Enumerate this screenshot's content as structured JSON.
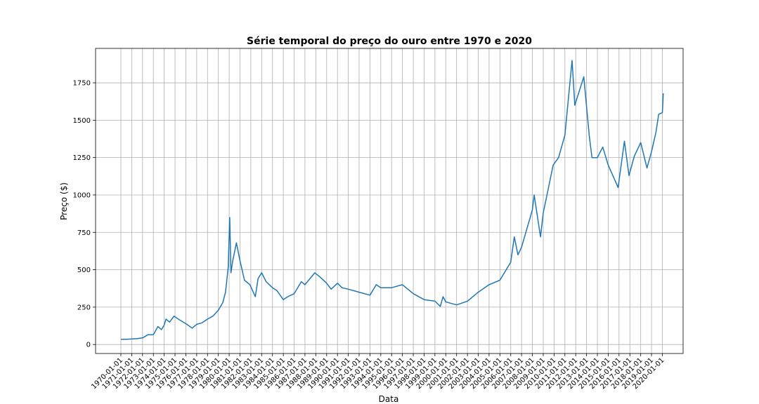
{
  "chart_data": {
    "type": "line",
    "title": "Série temporal do preço do ouro entre 1970 e 2020",
    "xlabel": "Data",
    "ylabel": "Preço ($)",
    "x_ticks": [
      "1970-01-01",
      "1971-01-01",
      "1972-01-01",
      "1973-01-01",
      "1974-01-01",
      "1975-01-01",
      "1976-01-01",
      "1977-01-01",
      "1978-01-01",
      "1979-01-01",
      "1980-01-01",
      "1981-01-01",
      "1982-01-01",
      "1983-01-01",
      "1984-01-01",
      "1985-01-01",
      "1986-01-01",
      "1987-01-01",
      "1988-01-01",
      "1989-01-01",
      "1990-01-01",
      "1991-01-01",
      "1992-01-01",
      "1993-01-01",
      "1994-01-01",
      "1995-01-01",
      "1996-01-01",
      "1997-01-01",
      "1998-01-01",
      "1999-01-01",
      "2000-01-01",
      "2001-01-01",
      "2002-01-01",
      "2003-01-01",
      "2004-01-01",
      "2005-01-01",
      "2006-01-01",
      "2007-01-01",
      "2008-01-01",
      "2009-01-01",
      "2010-01-01",
      "2011-01-01",
      "2012-01-01",
      "2013-01-01",
      "2014-01-01",
      "2015-01-01",
      "2016-01-01",
      "2017-01-01",
      "2018-01-01",
      "2019-01-01",
      "2020-01-01"
    ],
    "y_ticks": [
      0,
      250,
      500,
      750,
      1000,
      1250,
      1500,
      1750
    ],
    "xlim": [
      "1967-09-01",
      "2021-12-01"
    ],
    "ylim": [
      -60,
      1980
    ],
    "grid": true,
    "series": [
      {
        "color": "#1f77b4",
        "points": [
          [
            "1970-01-01",
            35
          ],
          [
            "1970-07-01",
            35
          ],
          [
            "1971-01-01",
            37
          ],
          [
            "1971-07-01",
            40
          ],
          [
            "1972-01-01",
            44
          ],
          [
            "1972-07-01",
            65
          ],
          [
            "1973-01-01",
            65
          ],
          [
            "1973-06-01",
            120
          ],
          [
            "1973-10-01",
            100
          ],
          [
            "1974-01-01",
            130
          ],
          [
            "1974-03-01",
            170
          ],
          [
            "1974-07-01",
            150
          ],
          [
            "1974-12-01",
            190
          ],
          [
            "1975-06-01",
            165
          ],
          [
            "1976-01-01",
            140
          ],
          [
            "1976-08-01",
            110
          ],
          [
            "1977-01-01",
            135
          ],
          [
            "1977-07-01",
            145
          ],
          [
            "1978-01-01",
            170
          ],
          [
            "1978-07-01",
            190
          ],
          [
            "1979-01-01",
            230
          ],
          [
            "1979-06-01",
            280
          ],
          [
            "1979-09-01",
            350
          ],
          [
            "1979-12-01",
            520
          ],
          [
            "1980-01-21",
            850
          ],
          [
            "1980-03-01",
            480
          ],
          [
            "1980-05-01",
            560
          ],
          [
            "1980-09-01",
            680
          ],
          [
            "1981-01-01",
            560
          ],
          [
            "1981-06-01",
            430
          ],
          [
            "1981-12-01",
            400
          ],
          [
            "1982-06-01",
            320
          ],
          [
            "1982-09-01",
            440
          ],
          [
            "1983-01-01",
            480
          ],
          [
            "1983-06-01",
            420
          ],
          [
            "1984-01-01",
            380
          ],
          [
            "1984-06-01",
            360
          ],
          [
            "1985-01-01",
            300
          ],
          [
            "1985-06-01",
            320
          ],
          [
            "1986-01-01",
            340
          ],
          [
            "1986-09-01",
            420
          ],
          [
            "1987-01-01",
            400
          ],
          [
            "1987-12-01",
            480
          ],
          [
            "1988-06-01",
            450
          ],
          [
            "1989-01-01",
            410
          ],
          [
            "1989-06-01",
            370
          ],
          [
            "1990-01-01",
            410
          ],
          [
            "1990-06-01",
            380
          ],
          [
            "1991-01-01",
            370
          ],
          [
            "1992-01-01",
            350
          ],
          [
            "1993-01-01",
            330
          ],
          [
            "1993-08-01",
            400
          ],
          [
            "1994-01-01",
            380
          ],
          [
            "1995-01-01",
            380
          ],
          [
            "1996-01-01",
            400
          ],
          [
            "1997-01-01",
            340
          ],
          [
            "1998-01-01",
            300
          ],
          [
            "1999-01-01",
            290
          ],
          [
            "1999-07-01",
            255
          ],
          [
            "1999-10-01",
            320
          ],
          [
            "2000-01-01",
            285
          ],
          [
            "2001-01-01",
            265
          ],
          [
            "2002-01-01",
            290
          ],
          [
            "2003-01-01",
            350
          ],
          [
            "2004-01-01",
            400
          ],
          [
            "2005-01-01",
            430
          ],
          [
            "2006-01-01",
            550
          ],
          [
            "2006-05-01",
            720
          ],
          [
            "2006-09-01",
            600
          ],
          [
            "2007-01-01",
            650
          ],
          [
            "2008-01-01",
            900
          ],
          [
            "2008-03-01",
            1000
          ],
          [
            "2008-10-01",
            720
          ],
          [
            "2009-01-01",
            880
          ],
          [
            "2009-12-01",
            1200
          ],
          [
            "2010-06-01",
            1250
          ],
          [
            "2011-01-01",
            1400
          ],
          [
            "2011-09-01",
            1900
          ],
          [
            "2011-12-01",
            1600
          ],
          [
            "2012-10-01",
            1790
          ],
          [
            "2013-04-01",
            1400
          ],
          [
            "2013-07-01",
            1250
          ],
          [
            "2014-01-01",
            1250
          ],
          [
            "2014-07-01",
            1320
          ],
          [
            "2015-01-01",
            1200
          ],
          [
            "2015-12-01",
            1050
          ],
          [
            "2016-07-01",
            1360
          ],
          [
            "2016-12-01",
            1130
          ],
          [
            "2017-06-01",
            1260
          ],
          [
            "2018-01-01",
            1350
          ],
          [
            "2018-08-01",
            1180
          ],
          [
            "2019-01-01",
            1290
          ],
          [
            "2019-06-01",
            1420
          ],
          [
            "2019-09-01",
            1540
          ],
          [
            "2020-01-01",
            1550
          ],
          [
            "2020-02-01",
            1680
          ]
        ]
      }
    ]
  }
}
